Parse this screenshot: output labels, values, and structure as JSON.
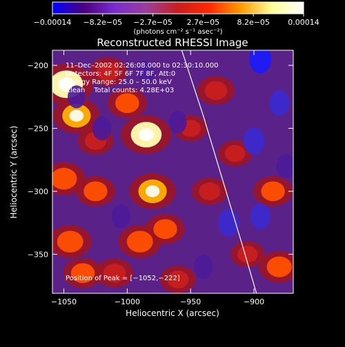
{
  "chart_data": {
    "type": "heatmap",
    "title": "Reconstructed RHESSI Image",
    "xlabel": "Heliocentric X (arcsec)",
    "ylabel": "Heliocentric Y (arcsec)",
    "xlim": [
      -1059,
      -869
    ],
    "ylim": [
      -381,
      -188
    ],
    "xticks": [
      {
        "v": -1050,
        "label": "−1050"
      },
      {
        "v": -1000,
        "label": "−1000"
      },
      {
        "v": -950,
        "label": "−950"
      },
      {
        "v": -900,
        "label": "−900"
      }
    ],
    "yticks": [
      {
        "v": -200,
        "label": "−200"
      },
      {
        "v": -250,
        "label": "−250"
      },
      {
        "v": -300,
        "label": "−300"
      },
      {
        "v": -350,
        "label": "−350"
      }
    ],
    "colorbar": {
      "min": -0.00014,
      "max": 0.00014,
      "tick_labels": [
        "−0.00014",
        "−8.2e−05",
        "−2.7e−05",
        "2.7e−05",
        "8.2e−05",
        "0.00014"
      ],
      "unit_label": "(photons cm⁻² s⁻¹ asec⁻²)",
      "colors": [
        "#0000ff",
        "#4b0082",
        "#7a2ccf",
        "#9b3e9b",
        "#c81e1e",
        "#ff2a00",
        "#ff9900",
        "#ffff99",
        "#ffffff"
      ]
    },
    "info_lines": [
      "11–Dec–2002 02:26:08.000 to 02:30:10.000",
      "Detectors: 4F 5F 6F 7F 8F, Att:0",
      "Energy Range: 25.0 – 50.0 keV",
      "Clean    Total counts: 4.28E+03"
    ],
    "peak_label": "Position of Peak = [−1052,−222]",
    "limb_curve": {
      "x": [
        -957,
        -940,
        -925,
        -910,
        -898
      ],
      "y": [
        -188,
        -240,
        -290,
        -340,
        -381
      ]
    },
    "hot_blobs": [
      {
        "x": -1048,
        "y": -215,
        "v": 1.0
      },
      {
        "x": -1040,
        "y": -240,
        "v": 0.8
      },
      {
        "x": -1050,
        "y": -290,
        "v": 0.7
      },
      {
        "x": -1045,
        "y": -340,
        "v": 0.7
      },
      {
        "x": -1035,
        "y": -365,
        "v": 0.6
      },
      {
        "x": -1025,
        "y": -300,
        "v": 0.6
      },
      {
        "x": -1015,
        "y": -205,
        "v": 0.55
      },
      {
        "x": -1000,
        "y": -230,
        "v": 0.6
      },
      {
        "x": -985,
        "y": -255,
        "v": 0.9
      },
      {
        "x": -980,
        "y": -300,
        "v": 0.8
      },
      {
        "x": -970,
        "y": -330,
        "v": 0.6
      },
      {
        "x": -990,
        "y": -340,
        "v": 0.7
      },
      {
        "x": -1010,
        "y": -365,
        "v": 0.55
      },
      {
        "x": -960,
        "y": -370,
        "v": 0.5
      },
      {
        "x": -930,
        "y": -220,
        "v": 0.55
      },
      {
        "x": -915,
        "y": -270,
        "v": 0.45
      },
      {
        "x": -935,
        "y": -300,
        "v": 0.5
      },
      {
        "x": -885,
        "y": -300,
        "v": 0.6
      },
      {
        "x": -880,
        "y": -360,
        "v": 0.65
      },
      {
        "x": -905,
        "y": -350,
        "v": 0.45
      },
      {
        "x": -950,
        "y": -250,
        "v": 0.45
      },
      {
        "x": -1025,
        "y": -260,
        "v": 0.5
      }
    ],
    "cold_blobs": [
      {
        "x": -895,
        "y": -195,
        "v": -0.5
      },
      {
        "x": -880,
        "y": -230,
        "v": -0.4
      },
      {
        "x": -900,
        "y": -260,
        "v": -0.45
      },
      {
        "x": -875,
        "y": -280,
        "v": -0.35
      },
      {
        "x": -920,
        "y": -325,
        "v": -0.45
      },
      {
        "x": -895,
        "y": -320,
        "v": -0.4
      },
      {
        "x": -1005,
        "y": -320,
        "v": -0.35
      },
      {
        "x": -1020,
        "y": -250,
        "v": -0.35
      },
      {
        "x": -960,
        "y": -245,
        "v": -0.3
      },
      {
        "x": -940,
        "y": -360,
        "v": -0.35
      },
      {
        "x": -1040,
        "y": -225,
        "v": -0.3
      },
      {
        "x": -985,
        "y": -205,
        "v": -0.3
      }
    ]
  }
}
